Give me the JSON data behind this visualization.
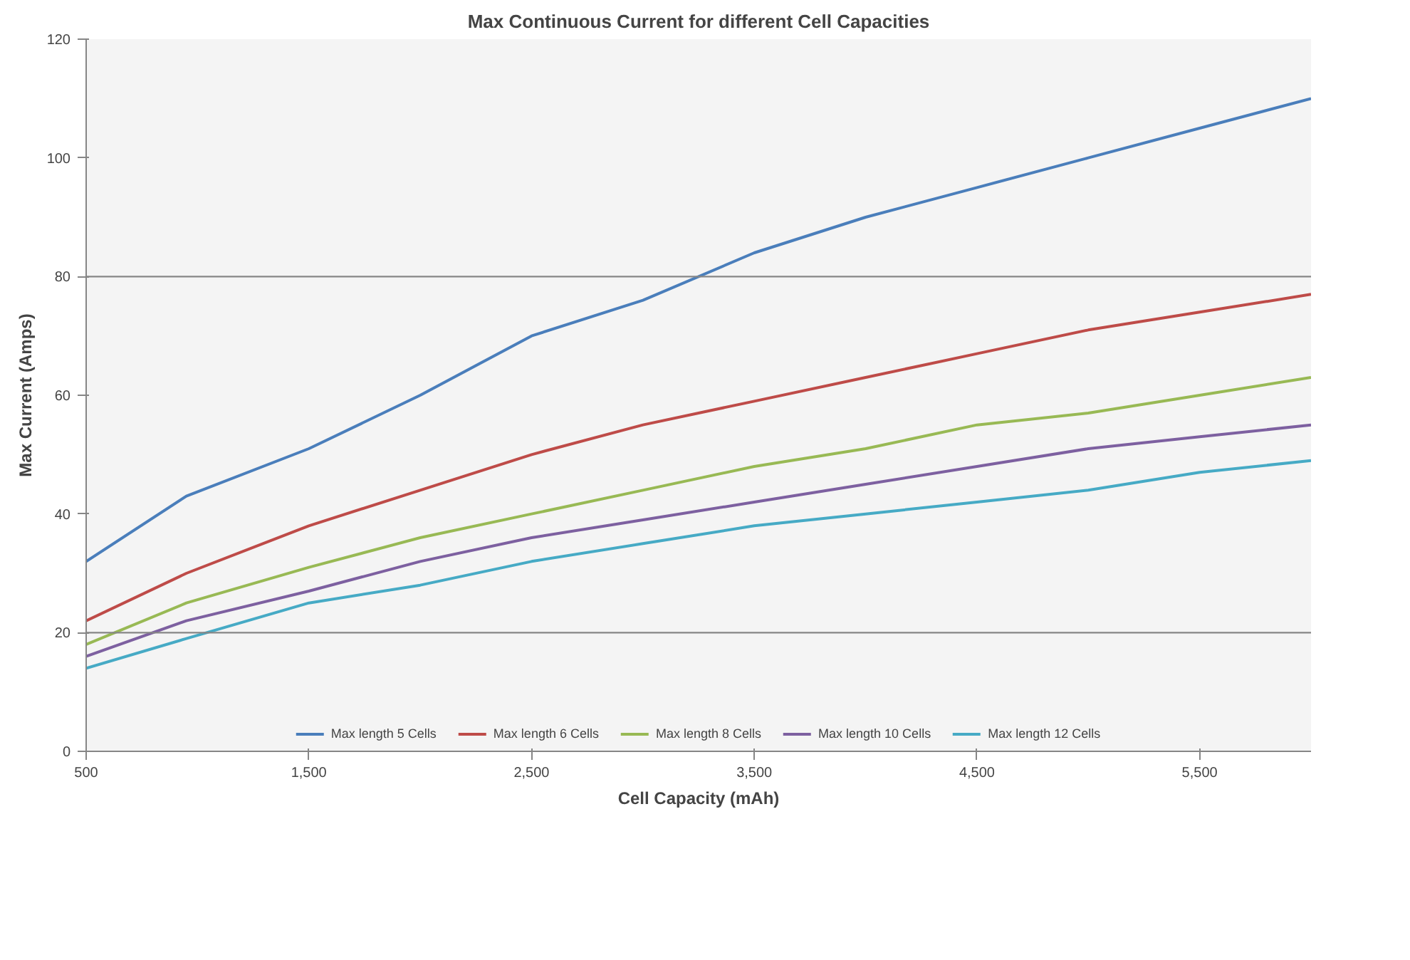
{
  "chart_data": {
    "type": "line",
    "title": "Max Continuous Current for different Cell Capacities",
    "xlabel": "Cell Capacity (mAh)",
    "ylabel": "Max Current (Amps)",
    "x": [
      500,
      950,
      1500,
      2000,
      2500,
      3000,
      3500,
      4000,
      4500,
      5000,
      5500,
      6000
    ],
    "series": [
      {
        "name": "Max length 5 Cells",
        "color": "#4a7ebb",
        "values": [
          32,
          43,
          51,
          60,
          70,
          76,
          84,
          90,
          95,
          100,
          105,
          110
        ]
      },
      {
        "name": "Max length 6 Cells",
        "color": "#be4b48",
        "values": [
          22,
          30,
          38,
          44,
          50,
          55,
          59,
          63,
          67,
          71,
          74,
          77
        ]
      },
      {
        "name": "Max length 8 Cells",
        "color": "#98b954",
        "values": [
          18,
          25,
          31,
          36,
          40,
          44,
          48,
          51,
          55,
          57,
          60,
          63
        ]
      },
      {
        "name": "Max length 10 Cells",
        "color": "#7d60a0",
        "values": [
          16,
          22,
          27,
          32,
          36,
          39,
          42,
          45,
          48,
          51,
          53,
          55
        ]
      },
      {
        "name": "Max length 12 Cells",
        "color": "#46aac5",
        "values": [
          14,
          19,
          25,
          28,
          32,
          35,
          38,
          40,
          42,
          44,
          47,
          49
        ]
      }
    ],
    "xlim": [
      500,
      6000
    ],
    "ylim": [
      0,
      120
    ],
    "xticks": [
      {
        "value": 500,
        "label": "500"
      },
      {
        "value": 1500,
        "label": "1,500"
      },
      {
        "value": 2500,
        "label": "2,500"
      },
      {
        "value": 3500,
        "label": "3,500"
      },
      {
        "value": 4500,
        "label": "4,500"
      },
      {
        "value": 5500,
        "label": "5,500"
      }
    ],
    "yticks": [
      0,
      20,
      40,
      60,
      80,
      100,
      120
    ],
    "ref_lines": [
      {
        "axis": "y",
        "value": 20,
        "color": "#868686"
      },
      {
        "axis": "y",
        "value": 80,
        "color": "#868686"
      }
    ],
    "grid": false,
    "legend": "bottom",
    "marker": "none",
    "line_style": "solid"
  }
}
